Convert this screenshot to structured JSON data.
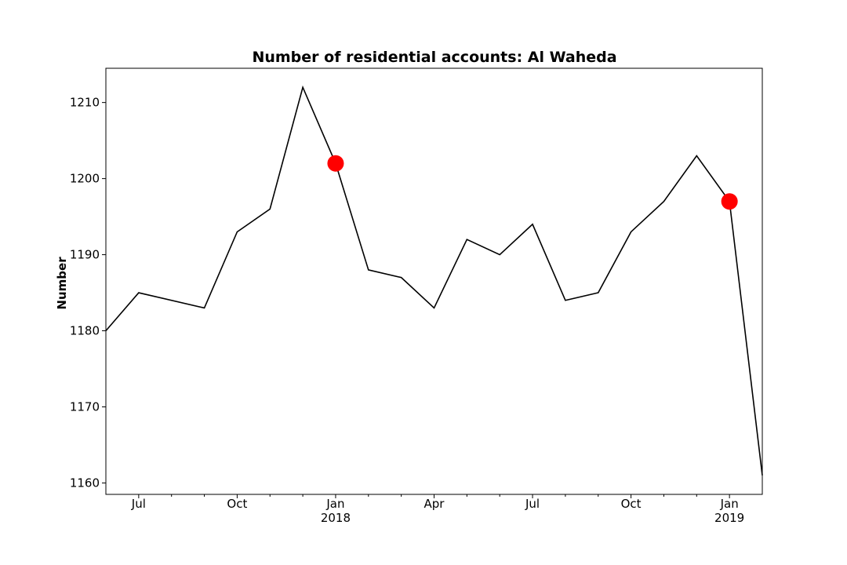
{
  "chart_data": {
    "type": "line",
    "title": "Number of residential accounts: Al Waheda",
    "xlabel": "",
    "ylabel": "Number",
    "ylim": [
      1158.5,
      1214.5
    ],
    "xlim": [
      "2017-06-01",
      "2019-02-01"
    ],
    "yticks": [
      1160,
      1170,
      1180,
      1190,
      1200,
      1210
    ],
    "xticks": [
      {
        "date": "2017-07-01",
        "label": "Jul",
        "sublabel": ""
      },
      {
        "date": "2017-10-01",
        "label": "Oct",
        "sublabel": ""
      },
      {
        "date": "2018-01-01",
        "label": "Jan",
        "sublabel": "2018"
      },
      {
        "date": "2018-04-01",
        "label": "Apr",
        "sublabel": ""
      },
      {
        "date": "2018-07-01",
        "label": "Jul",
        "sublabel": ""
      },
      {
        "date": "2018-10-01",
        "label": "Oct",
        "sublabel": ""
      },
      {
        "date": "2019-01-01",
        "label": "Jan",
        "sublabel": "2019"
      }
    ],
    "minor_ticks": [
      "2017-08-01",
      "2017-09-01",
      "2017-11-01",
      "2017-12-01",
      "2018-02-01",
      "2018-03-01",
      "2018-05-01",
      "2018-06-01",
      "2018-08-01",
      "2018-09-01",
      "2018-11-01",
      "2018-12-01"
    ],
    "grid": false,
    "series": [
      {
        "color": "#000000",
        "points": [
          {
            "x": "2017-06-01",
            "y": 1180
          },
          {
            "x": "2017-07-01",
            "y": 1185
          },
          {
            "x": "2017-09-01",
            "y": 1183
          },
          {
            "x": "2017-10-01",
            "y": 1193
          },
          {
            "x": "2017-11-01",
            "y": 1196
          },
          {
            "x": "2017-12-01",
            "y": 1212
          },
          {
            "x": "2018-01-01",
            "y": 1202
          },
          {
            "x": "2018-02-01",
            "y": 1188
          },
          {
            "x": "2018-03-01",
            "y": 1187
          },
          {
            "x": "2018-04-01",
            "y": 1183
          },
          {
            "x": "2018-05-01",
            "y": 1192
          },
          {
            "x": "2018-06-01",
            "y": 1190
          },
          {
            "x": "2018-07-01",
            "y": 1194
          },
          {
            "x": "2018-08-01",
            "y": 1184
          },
          {
            "x": "2018-09-01",
            "y": 1185
          },
          {
            "x": "2018-10-01",
            "y": 1193
          },
          {
            "x": "2018-11-01",
            "y": 1197
          },
          {
            "x": "2018-12-01",
            "y": 1203
          },
          {
            "x": "2019-01-01",
            "y": 1197
          },
          {
            "x": "2019-02-01",
            "y": 1161
          }
        ]
      }
    ],
    "highlights": {
      "color": "#ff0000",
      "points": [
        {
          "x": "2018-01-01",
          "y": 1202
        },
        {
          "x": "2019-01-01",
          "y": 1197
        }
      ]
    }
  }
}
